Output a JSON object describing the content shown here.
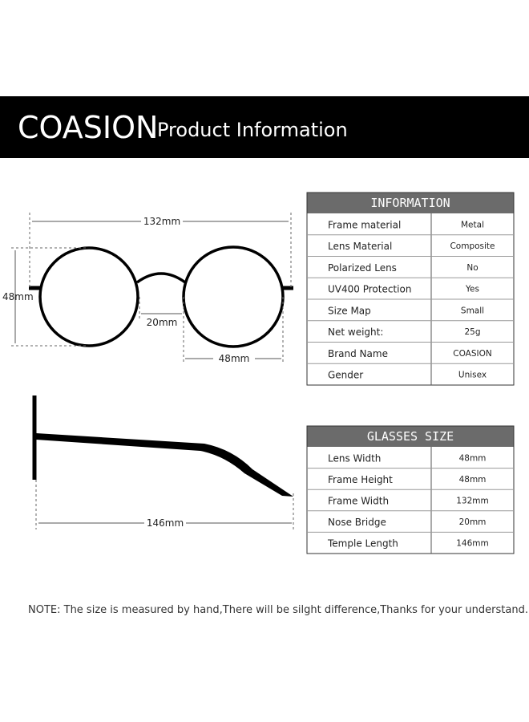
{
  "header": {
    "brand": "COASION",
    "title": "Product Information"
  },
  "diagram": {
    "front_width": "132mm",
    "frame_height": "48mm",
    "bridge": "20mm",
    "lens_width": "48mm",
    "temple_length": "146mm"
  },
  "information": {
    "title": "INFORMATION",
    "rows": [
      [
        "Frame material",
        "Metal"
      ],
      [
        "Lens  Material",
        "Composite"
      ],
      [
        "Polarized Lens",
        "No"
      ],
      [
        "UV400 Protection",
        "Yes"
      ],
      [
        "Size Map",
        "Small"
      ],
      [
        "Net weight:",
        "25g"
      ],
      [
        "Brand Name",
        "COASION"
      ],
      [
        "Gender",
        "Unisex"
      ]
    ]
  },
  "glasses_size": {
    "title": "GLASSES  SIZE",
    "rows": [
      [
        "Lens Width",
        "48mm"
      ],
      [
        "Frame Height",
        "48mm"
      ],
      [
        "Frame Width",
        "132mm"
      ],
      [
        "Nose Bridge",
        "20mm"
      ],
      [
        "Temple Length",
        "146mm"
      ]
    ]
  },
  "note": "NOTE: The size is measured by hand,There will be silght difference,Thanks for your understand."
}
